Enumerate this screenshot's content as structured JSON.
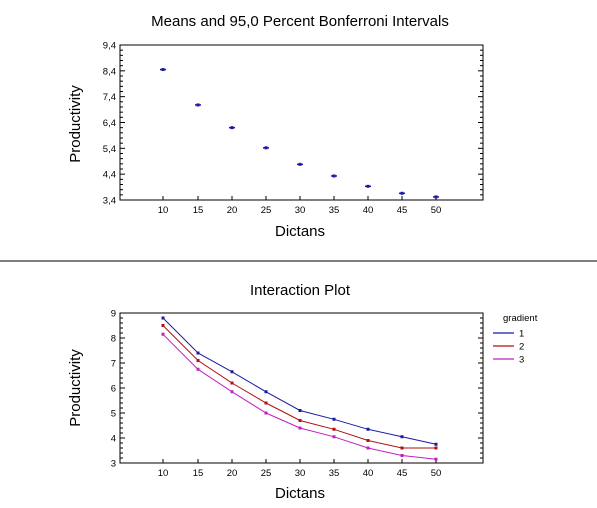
{
  "chart_data": [
    {
      "type": "scatter",
      "title": "Means and 95,0 Percent Bonferroni Intervals",
      "xlabel": "Dictans",
      "ylabel": "Productivity",
      "x": [
        "10",
        "15",
        "20",
        "25",
        "30",
        "35",
        "40",
        "45",
        "50"
      ],
      "y": [
        8.45,
        7.08,
        6.2,
        5.42,
        4.78,
        4.33,
        3.93,
        3.66,
        3.52
      ],
      "yticks": [
        "3,4",
        "4,4",
        "5,4",
        "6,4",
        "7,4",
        "8,4",
        "9,4"
      ],
      "ylim": [
        3.4,
        9.4
      ],
      "marker_color": "#1a1aa6",
      "grid": false
    },
    {
      "type": "line",
      "title": "Interaction Plot",
      "xlabel": "Dictans",
      "ylabel": "Productivity",
      "categories": [
        "10",
        "15",
        "20",
        "25",
        "30",
        "35",
        "40",
        "45",
        "50"
      ],
      "yticks": [
        "3",
        "4",
        "5",
        "6",
        "7",
        "8",
        "9"
      ],
      "ylim": [
        3,
        9
      ],
      "legend_title": "gradient",
      "legend_position": "right",
      "grid": false,
      "series": [
        {
          "name": "1",
          "color": "#1a1aa6",
          "values": [
            8.8,
            7.4,
            6.65,
            5.85,
            5.1,
            4.75,
            4.35,
            4.05,
            3.75
          ]
        },
        {
          "name": "2",
          "color": "#b01010",
          "values": [
            8.5,
            7.1,
            6.2,
            5.4,
            4.7,
            4.35,
            3.9,
            3.6,
            3.6
          ]
        },
        {
          "name": "3",
          "color": "#c020c0",
          "values": [
            8.15,
            6.75,
            5.85,
            5.0,
            4.4,
            4.05,
            3.6,
            3.3,
            3.15
          ]
        }
      ]
    }
  ]
}
